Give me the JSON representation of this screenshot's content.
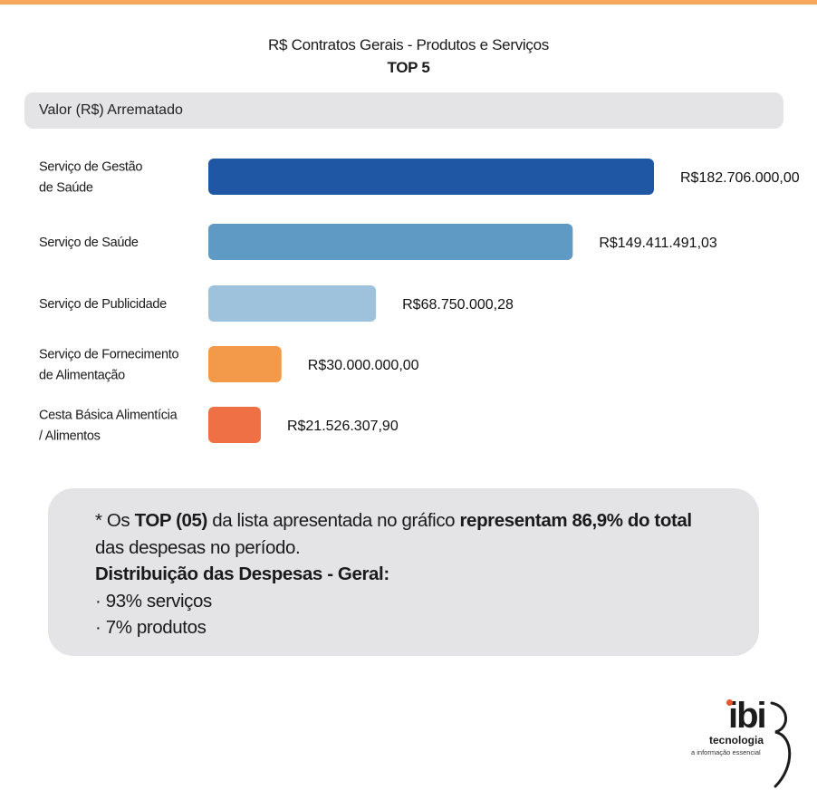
{
  "title": "R$ Contratos Gerais - Produtos e Serviços",
  "subtitle": "TOP 5",
  "header_label": "Valor (R$) Arrematado",
  "chart_data": {
    "type": "bar",
    "orientation": "horizontal",
    "title": "R$ Contratos Gerais - Produtos e Serviços",
    "subtitle": "TOP 5",
    "xlabel": "Valor (R$) Arrematado",
    "ylabel": "",
    "grid": false,
    "legend": "none",
    "categories": [
      [
        "Serviço de Gestão",
        "de Saúde"
      ],
      [
        "Serviço de Saúde"
      ],
      [
        "Serviço de Publicidade"
      ],
      [
        "Serviço de Fornecimento",
        "de Alimentação"
      ],
      [
        "Cesta Básica Alimentícia",
        "/ Alimentos"
      ]
    ],
    "values": [
      182706000.0,
      149411491.03,
      68750000.28,
      30000000.0,
      21526307.9
    ],
    "value_labels": [
      "R$182.706.000,00",
      "R$149.411.491,03",
      "R$68.750.000,28",
      "R$30.000.000,00",
      "R$21.526.307,90"
    ],
    "colors": [
      "#1f57a4",
      "#5e9ac4",
      "#9fc2dc",
      "#f39a4a",
      "#ee7044"
    ],
    "xlim": [
      0,
      182706000
    ]
  },
  "note": {
    "line1_pre": "* Os ",
    "line1_bold1": "TOP (05)",
    "line1_mid": " da lista apresentada no gráfico ",
    "line1_bold2": "representam 86,9% do total",
    "line2": "das despesas no período.",
    "line3": "Distribuição das Despesas - Geral:",
    "line4": "· 93% serviços",
    "line5": "· 7% produtos"
  },
  "logo": {
    "word": "ibi",
    "line2": "tecnologia",
    "tagline": "a informação essencial",
    "accent_color": "#e8562a"
  }
}
